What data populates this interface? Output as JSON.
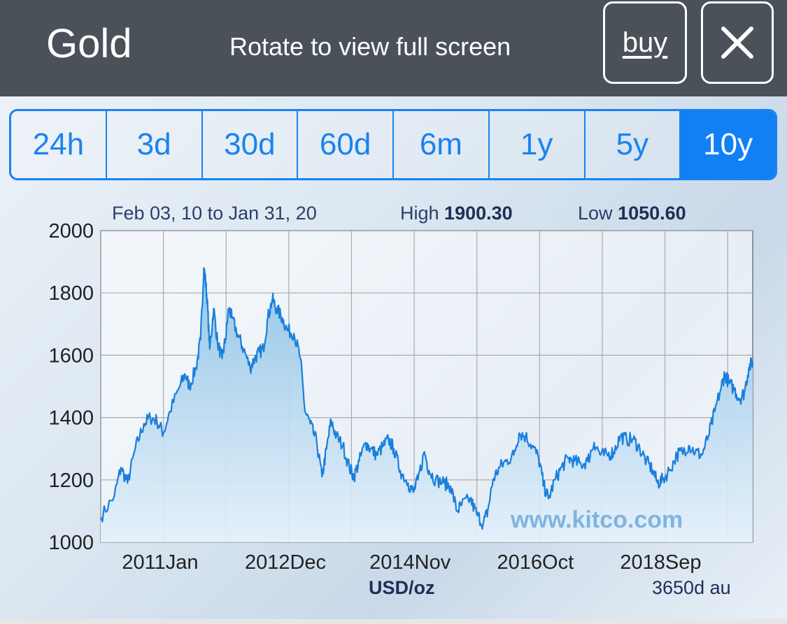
{
  "header": {
    "title": "Gold",
    "rotate_hint": "Rotate to view full screen",
    "buy_label": "buy",
    "close_icon": "close-icon"
  },
  "tabs": [
    {
      "label": "24h",
      "active": false
    },
    {
      "label": "3d",
      "active": false
    },
    {
      "label": "30d",
      "active": false
    },
    {
      "label": "60d",
      "active": false
    },
    {
      "label": "6m",
      "active": false
    },
    {
      "label": "1y",
      "active": false
    },
    {
      "label": "5y",
      "active": false
    },
    {
      "label": "10y",
      "active": true
    }
  ],
  "chart_info": {
    "range": "Feb 03, 10 to Jan 31, 20",
    "high_label": "High",
    "high_value": "1900.30",
    "low_label": "Low",
    "low_value": "1050.60",
    "watermark": "www.kitco.com",
    "unit": "USD/oz",
    "period_note": "3650d au"
  },
  "colors": {
    "accent": "#1a82f0",
    "topbar": "#4b5158",
    "line": "#1a7fdc"
  },
  "chart_data": {
    "type": "area",
    "xlabel": "USD/oz",
    "ylim": [
      1000,
      2000
    ],
    "y_ticks": [
      1000,
      1200,
      1400,
      1600,
      1800,
      2000
    ],
    "x_ticks": [
      {
        "label": "2011Jan",
        "x": 2011.0
      },
      {
        "label": "2012Dec",
        "x": 2012.92
      },
      {
        "label": "2014Nov",
        "x": 2014.83
      },
      {
        "label": "2016Oct",
        "x": 2016.75
      },
      {
        "label": "2018Sep",
        "x": 2018.67
      }
    ],
    "xlim": [
      2010.09,
      2020.08
    ],
    "grid": true,
    "series": [
      {
        "values": [
          [
            2010.09,
            1080
          ],
          [
            2010.3,
            1150
          ],
          [
            2010.4,
            1240
          ],
          [
            2010.5,
            1190
          ],
          [
            2010.62,
            1300
          ],
          [
            2010.75,
            1380
          ],
          [
            2010.85,
            1400
          ],
          [
            2010.95,
            1390
          ],
          [
            2011.05,
            1350
          ],
          [
            2011.15,
            1420
          ],
          [
            2011.3,
            1500
          ],
          [
            2011.38,
            1540
          ],
          [
            2011.45,
            1500
          ],
          [
            2011.55,
            1560
          ],
          [
            2011.62,
            1650
          ],
          [
            2011.67,
            1880
          ],
          [
            2011.69,
            1850
          ],
          [
            2011.72,
            1780
          ],
          [
            2011.76,
            1620
          ],
          [
            2011.82,
            1750
          ],
          [
            2011.88,
            1640
          ],
          [
            2011.95,
            1590
          ],
          [
            2012.0,
            1650
          ],
          [
            2012.05,
            1750
          ],
          [
            2012.1,
            1720
          ],
          [
            2012.2,
            1660
          ],
          [
            2012.28,
            1620
          ],
          [
            2012.38,
            1560
          ],
          [
            2012.45,
            1590
          ],
          [
            2012.52,
            1610
          ],
          [
            2012.58,
            1620
          ],
          [
            2012.65,
            1720
          ],
          [
            2012.72,
            1780
          ],
          [
            2012.78,
            1750
          ],
          [
            2012.87,
            1720
          ],
          [
            2012.95,
            1680
          ],
          [
            2013.05,
            1670
          ],
          [
            2013.15,
            1590
          ],
          [
            2013.22,
            1420
          ],
          [
            2013.3,
            1380
          ],
          [
            2013.4,
            1320
          ],
          [
            2013.48,
            1210
          ],
          [
            2013.55,
            1300
          ],
          [
            2013.62,
            1390
          ],
          [
            2013.7,
            1340
          ],
          [
            2013.8,
            1310
          ],
          [
            2013.9,
            1240
          ],
          [
            2013.97,
            1210
          ],
          [
            2014.05,
            1260
          ],
          [
            2014.15,
            1320
          ],
          [
            2014.22,
            1300
          ],
          [
            2014.32,
            1280
          ],
          [
            2014.42,
            1310
          ],
          [
            2014.5,
            1330
          ],
          [
            2014.58,
            1300
          ],
          [
            2014.68,
            1230
          ],
          [
            2014.8,
            1190
          ],
          [
            2014.88,
            1160
          ],
          [
            2014.95,
            1200
          ],
          [
            2015.05,
            1290
          ],
          [
            2015.12,
            1230
          ],
          [
            2015.22,
            1200
          ],
          [
            2015.35,
            1190
          ],
          [
            2015.45,
            1180
          ],
          [
            2015.55,
            1100
          ],
          [
            2015.62,
            1120
          ],
          [
            2015.75,
            1140
          ],
          [
            2015.85,
            1090
          ],
          [
            2015.95,
            1060
          ],
          [
            2016.02,
            1100
          ],
          [
            2016.1,
            1200
          ],
          [
            2016.2,
            1240
          ],
          [
            2016.3,
            1260
          ],
          [
            2016.42,
            1280
          ],
          [
            2016.5,
            1350
          ],
          [
            2016.6,
            1340
          ],
          [
            2016.7,
            1310
          ],
          [
            2016.8,
            1270
          ],
          [
            2016.88,
            1180
          ],
          [
            2016.95,
            1140
          ],
          [
            2017.05,
            1200
          ],
          [
            2017.15,
            1240
          ],
          [
            2017.25,
            1270
          ],
          [
            2017.35,
            1260
          ],
          [
            2017.45,
            1250
          ],
          [
            2017.55,
            1260
          ],
          [
            2017.65,
            1320
          ],
          [
            2017.75,
            1280
          ],
          [
            2017.85,
            1280
          ],
          [
            2017.95,
            1290
          ],
          [
            2018.05,
            1340
          ],
          [
            2018.15,
            1330
          ],
          [
            2018.25,
            1330
          ],
          [
            2018.35,
            1300
          ],
          [
            2018.45,
            1260
          ],
          [
            2018.55,
            1230
          ],
          [
            2018.62,
            1190
          ],
          [
            2018.7,
            1200
          ],
          [
            2018.8,
            1230
          ],
          [
            2018.92,
            1280
          ],
          [
            2019.0,
            1290
          ],
          [
            2019.1,
            1310
          ],
          [
            2019.2,
            1290
          ],
          [
            2019.3,
            1280
          ],
          [
            2019.4,
            1340
          ],
          [
            2019.5,
            1420
          ],
          [
            2019.6,
            1500
          ],
          [
            2019.65,
            1540
          ],
          [
            2019.72,
            1510
          ],
          [
            2019.8,
            1490
          ],
          [
            2019.88,
            1460
          ],
          [
            2019.95,
            1480
          ],
          [
            2020.02,
            1560
          ],
          [
            2020.08,
            1580
          ]
        ]
      }
    ]
  }
}
